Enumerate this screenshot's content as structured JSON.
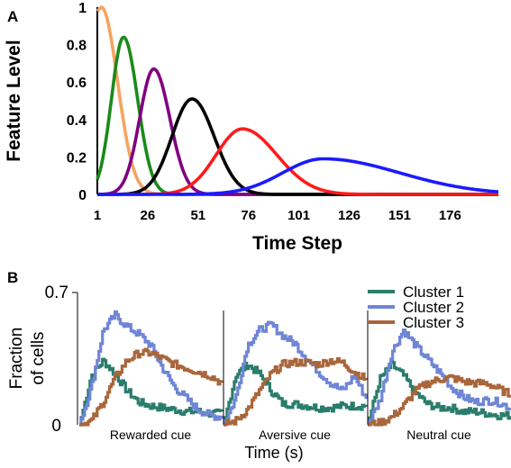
{
  "chart_data": [
    {
      "panel_label": "A",
      "type": "line",
      "title": "",
      "xlabel": "Time Step",
      "ylabel": "Feature Level",
      "xlim": [
        1,
        200
      ],
      "ylim": [
        0,
        1
      ],
      "xticks": [
        "1",
        "26",
        "51",
        "76",
        "101",
        "126",
        "151",
        "176"
      ],
      "yticks": [
        "0",
        "0.2",
        "0.4",
        "0.6",
        "0.8",
        "1"
      ],
      "series": [
        {
          "color": "#f4a460",
          "peak_x": 3,
          "peak_y": 1.0,
          "rise_width": 3,
          "fall_width": 8
        },
        {
          "color": "#1a8a1a",
          "peak_x": 14,
          "peak_y": 0.84,
          "rise_width": 6,
          "fall_width": 7
        },
        {
          "color": "#800080",
          "peak_x": 29,
          "peak_y": 0.67,
          "rise_width": 7,
          "fall_width": 8
        },
        {
          "color": "#000000",
          "peak_x": 48,
          "peak_y": 0.51,
          "rise_width": 10,
          "fall_width": 11
        },
        {
          "color": "#ff1a1a",
          "peak_x": 73,
          "peak_y": 0.35,
          "rise_width": 13,
          "fall_width": 17
        },
        {
          "color": "#1a1aff",
          "peak_x": 113,
          "peak_y": 0.19,
          "rise_width": 20,
          "fall_width": 38
        }
      ],
      "grid": false,
      "legend": "none"
    },
    {
      "panel_label": "B",
      "type": "line",
      "title": "",
      "xlabel": "Time (s)",
      "ylabel": "Fraction of cells",
      "ylim": [
        0,
        0.7
      ],
      "yticks": [
        "0",
        "0.7"
      ],
      "categories": [
        "Rewarded cue",
        "Aversive cue",
        "Neutral cue"
      ],
      "series": [
        {
          "name": "Cluster 1",
          "color": "#2a7d6b",
          "values": [
            [
              0.0,
              0.26,
              0.34,
              0.27,
              0.18,
              0.12,
              0.1,
              0.09,
              0.08,
              0.07,
              0.07,
              0.06,
              0.06
            ],
            [
              0.0,
              0.26,
              0.32,
              0.27,
              0.18,
              0.11,
              0.11,
              0.1,
              0.09,
              0.09,
              0.1,
              0.1,
              0.1
            ],
            [
              0.0,
              0.24,
              0.32,
              0.26,
              0.17,
              0.11,
              0.09,
              0.09,
              0.07,
              0.07,
              0.06,
              0.05,
              0.05
            ]
          ]
        },
        {
          "name": "Cluster 2",
          "color": "#6f85d6",
          "values": [
            [
              0.0,
              0.2,
              0.5,
              0.58,
              0.52,
              0.48,
              0.42,
              0.3,
              0.2,
              0.14,
              0.08,
              0.05,
              0.04
            ],
            [
              0.0,
              0.14,
              0.42,
              0.5,
              0.53,
              0.47,
              0.43,
              0.35,
              0.28,
              0.22,
              0.18,
              0.26,
              0.14
            ],
            [
              0.0,
              0.13,
              0.38,
              0.5,
              0.42,
              0.35,
              0.28,
              0.2,
              0.15,
              0.12,
              0.13,
              0.12,
              0.09
            ]
          ]
        },
        {
          "name": "Cluster 3",
          "color": "#a9663b",
          "values": [
            [
              0.0,
              0.02,
              0.12,
              0.25,
              0.34,
              0.38,
              0.38,
              0.35,
              0.32,
              0.3,
              0.28,
              0.26,
              0.22
            ],
            [
              0.0,
              0.02,
              0.08,
              0.18,
              0.27,
              0.32,
              0.33,
              0.33,
              0.32,
              0.34,
              0.33,
              0.28,
              0.24
            ],
            [
              0.0,
              0.01,
              0.04,
              0.1,
              0.18,
              0.22,
              0.24,
              0.25,
              0.23,
              0.22,
              0.22,
              0.19,
              0.16
            ]
          ]
        }
      ],
      "grid": false,
      "legend": "top-right"
    }
  ]
}
